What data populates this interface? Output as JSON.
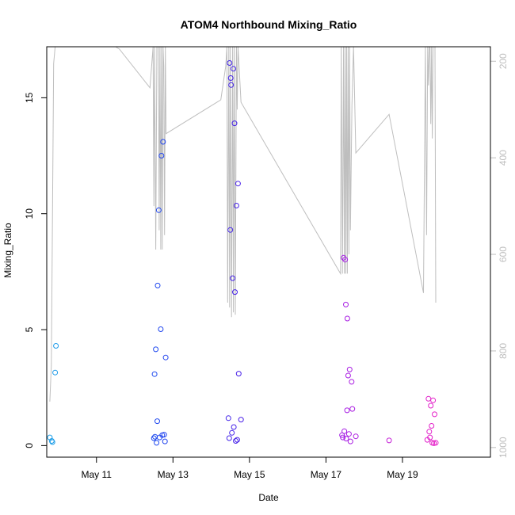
{
  "chart_data": {
    "type": "scatter",
    "title": "ATOM4 Northbound Mixing_Ratio",
    "xlabel": "Date",
    "ylabel": "Mixing_Ratio",
    "x_ticks": [
      "May 11",
      "May 13",
      "May 15",
      "May 17",
      "May 19"
    ],
    "x_tick_values": [
      11,
      13,
      15,
      17,
      19
    ],
    "xlim": [
      9.7,
      21.3
    ],
    "ylim": [
      -0.5,
      17.2
    ],
    "y_ticks": [
      0,
      5,
      10,
      15
    ],
    "secondary_axis": {
      "label": "",
      "reversed": true,
      "ticks": [
        200,
        400,
        600,
        800,
        1000
      ],
      "lim": [
        1020,
        170
      ],
      "color": "#bebebe"
    },
    "grid": false,
    "legend": "none",
    "marker": "open-circle",
    "color_gradient": [
      "#1ea0e8",
      "#1a4ef0",
      "#4b1fe8",
      "#a21ee6",
      "#e620c8"
    ],
    "points": [
      {
        "x": 9.78,
        "y": 0.35
      },
      {
        "x": 9.83,
        "y": 0.2
      },
      {
        "x": 9.85,
        "y": 0.15
      },
      {
        "x": 9.92,
        "y": 3.15
      },
      {
        "x": 9.94,
        "y": 4.3
      },
      {
        "x": 12.5,
        "y": 0.32
      },
      {
        "x": 12.52,
        "y": 3.08
      },
      {
        "x": 12.53,
        "y": 0.38
      },
      {
        "x": 12.55,
        "y": 4.15
      },
      {
        "x": 12.57,
        "y": 0.12
      },
      {
        "x": 12.59,
        "y": 1.05
      },
      {
        "x": 12.6,
        "y": 6.9
      },
      {
        "x": 12.63,
        "y": 10.15
      },
      {
        "x": 12.65,
        "y": 0.35
      },
      {
        "x": 12.68,
        "y": 5.02
      },
      {
        "x": 12.7,
        "y": 12.5
      },
      {
        "x": 12.72,
        "y": 0.45
      },
      {
        "x": 12.74,
        "y": 13.1
      },
      {
        "x": 12.77,
        "y": 0.47
      },
      {
        "x": 12.79,
        "y": 0.18
      },
      {
        "x": 12.81,
        "y": 3.8
      },
      {
        "x": 14.45,
        "y": 1.18
      },
      {
        "x": 14.47,
        "y": 0.32
      },
      {
        "x": 14.48,
        "y": 16.5
      },
      {
        "x": 14.5,
        "y": 9.3
      },
      {
        "x": 14.51,
        "y": 15.85
      },
      {
        "x": 14.52,
        "y": 15.55
      },
      {
        "x": 14.54,
        "y": 0.55
      },
      {
        "x": 14.56,
        "y": 7.22
      },
      {
        "x": 14.58,
        "y": 16.25
      },
      {
        "x": 14.59,
        "y": 0.8
      },
      {
        "x": 14.61,
        "y": 13.9
      },
      {
        "x": 14.62,
        "y": 6.62
      },
      {
        "x": 14.64,
        "y": 0.2
      },
      {
        "x": 14.66,
        "y": 10.35
      },
      {
        "x": 14.68,
        "y": 0.25
      },
      {
        "x": 14.7,
        "y": 11.3
      },
      {
        "x": 14.72,
        "y": 3.1
      },
      {
        "x": 14.78,
        "y": 1.12
      },
      {
        "x": 17.42,
        "y": 0.45
      },
      {
        "x": 17.44,
        "y": 0.35
      },
      {
        "x": 17.46,
        "y": 8.1
      },
      {
        "x": 17.48,
        "y": 0.62
      },
      {
        "x": 17.5,
        "y": 8.02
      },
      {
        "x": 17.52,
        "y": 6.08
      },
      {
        "x": 17.53,
        "y": 0.3
      },
      {
        "x": 17.55,
        "y": 1.52
      },
      {
        "x": 17.56,
        "y": 5.48
      },
      {
        "x": 17.58,
        "y": 3.02
      },
      {
        "x": 17.6,
        "y": 0.5
      },
      {
        "x": 17.62,
        "y": 3.28
      },
      {
        "x": 17.64,
        "y": 0.18
      },
      {
        "x": 17.67,
        "y": 2.75
      },
      {
        "x": 17.69,
        "y": 1.58
      },
      {
        "x": 17.78,
        "y": 0.4
      },
      {
        "x": 18.65,
        "y": 0.22
      },
      {
        "x": 19.65,
        "y": 0.25
      },
      {
        "x": 19.68,
        "y": 2.02
      },
      {
        "x": 19.7,
        "y": 0.6
      },
      {
        "x": 19.72,
        "y": 0.35
      },
      {
        "x": 19.74,
        "y": 1.72
      },
      {
        "x": 19.76,
        "y": 0.85
      },
      {
        "x": 19.78,
        "y": 0.12
      },
      {
        "x": 19.8,
        "y": 1.95
      },
      {
        "x": 19.82,
        "y": 0.1
      },
      {
        "x": 19.84,
        "y": 1.35
      },
      {
        "x": 19.87,
        "y": 0.12
      }
    ],
    "secondary_line": [
      [
        9.78,
        905
      ],
      [
        9.82,
        830
      ],
      [
        9.88,
        205
      ],
      [
        9.92,
        170
      ],
      [
        11.5,
        170
      ],
      [
        11.6,
        175
      ],
      [
        12.4,
        255
      ],
      [
        12.48,
        170
      ],
      [
        12.5,
        500
      ],
      [
        12.52,
        170
      ],
      [
        12.55,
        590
      ],
      [
        12.58,
        170
      ],
      [
        12.62,
        170
      ],
      [
        12.64,
        550
      ],
      [
        12.66,
        170
      ],
      [
        12.68,
        590
      ],
      [
        12.7,
        170
      ],
      [
        12.72,
        590
      ],
      [
        12.74,
        170
      ],
      [
        12.76,
        210
      ],
      [
        12.78,
        560
      ],
      [
        12.8,
        170
      ],
      [
        12.82,
        350
      ],
      [
        14.25,
        280
      ],
      [
        14.38,
        210
      ],
      [
        14.41,
        170
      ],
      [
        14.43,
        700
      ],
      [
        14.46,
        170
      ],
      [
        14.48,
        710
      ],
      [
        14.5,
        170
      ],
      [
        14.53,
        730
      ],
      [
        14.56,
        170
      ],
      [
        14.58,
        720
      ],
      [
        14.6,
        170
      ],
      [
        14.63,
        725
      ],
      [
        14.66,
        170
      ],
      [
        14.68,
        300
      ],
      [
        14.7,
        170
      ],
      [
        14.78,
        285
      ],
      [
        17.38,
        640
      ],
      [
        17.4,
        170
      ],
      [
        17.43,
        640
      ],
      [
        17.46,
        170
      ],
      [
        17.48,
        640
      ],
      [
        17.5,
        170
      ],
      [
        17.52,
        640
      ],
      [
        17.54,
        170
      ],
      [
        17.56,
        640
      ],
      [
        17.58,
        170
      ],
      [
        17.6,
        600
      ],
      [
        17.62,
        170
      ],
      [
        17.64,
        550
      ],
      [
        17.68,
        290
      ],
      [
        17.72,
        170
      ],
      [
        17.78,
        390
      ],
      [
        18.65,
        310
      ],
      [
        19.55,
        680
      ],
      [
        19.6,
        170
      ],
      [
        19.63,
        560
      ],
      [
        19.66,
        170
      ],
      [
        19.68,
        250
      ],
      [
        19.7,
        170
      ],
      [
        19.72,
        170
      ],
      [
        19.74,
        330
      ],
      [
        19.76,
        170
      ],
      [
        19.78,
        360
      ],
      [
        19.8,
        170
      ],
      [
        19.85,
        170
      ],
      [
        19.87,
        700
      ]
    ]
  }
}
